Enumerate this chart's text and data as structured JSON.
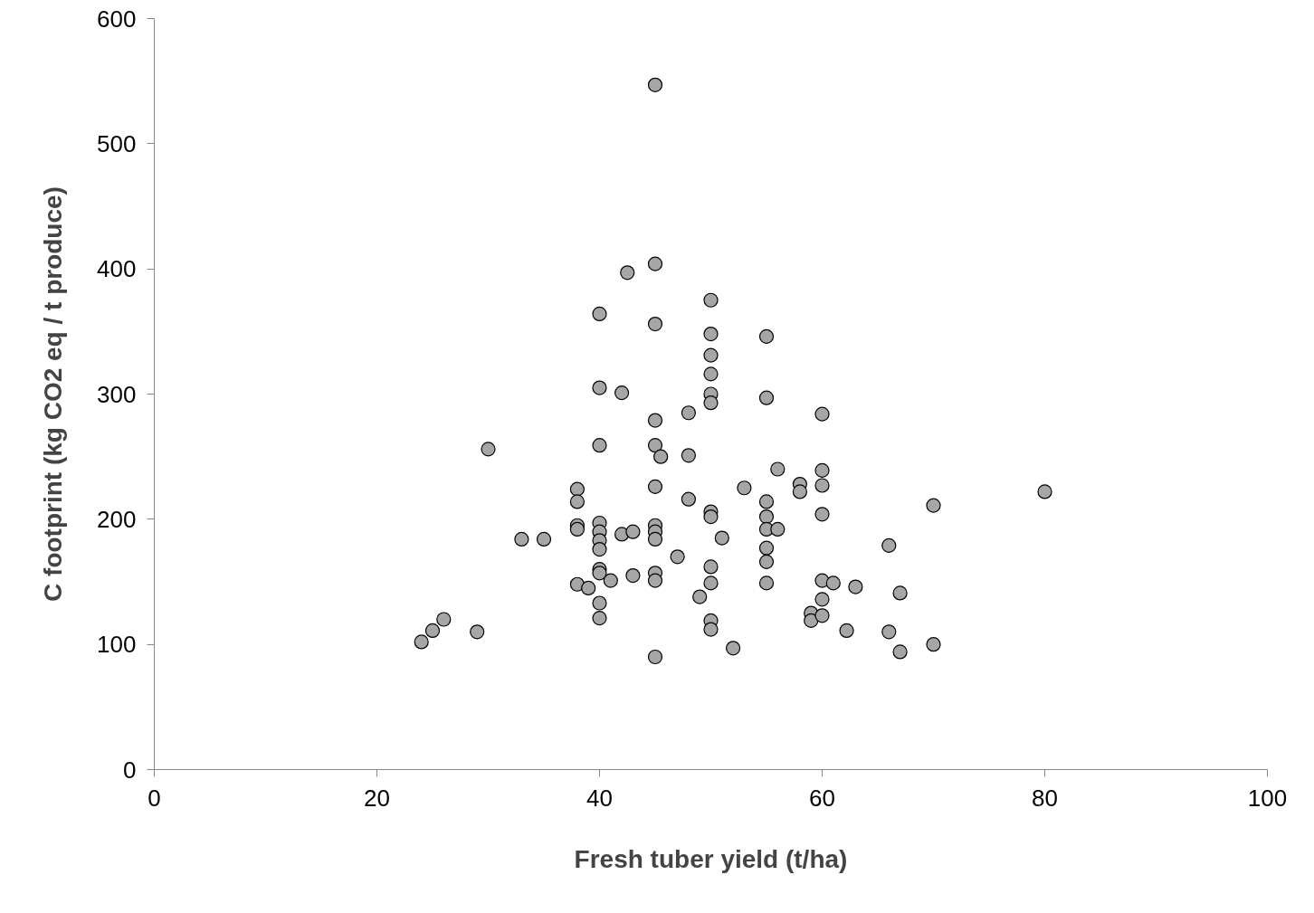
{
  "chart_data": {
    "type": "scatter",
    "xlabel": "Fresh tuber yield (t/ha)",
    "ylabel": "C footprint (kg CO2 eq / t produce)",
    "x": [
      24,
      25,
      26,
      29,
      30,
      33,
      35,
      38,
      38,
      38,
      38,
      38,
      39,
      40,
      40,
      40,
      40,
      40,
      40,
      40,
      40,
      40,
      40,
      40,
      41,
      42,
      42,
      42.5,
      43,
      43,
      45,
      45,
      45,
      45,
      45,
      45,
      45,
      45,
      45,
      45,
      45,
      45,
      45.5,
      47,
      48,
      48,
      48,
      49,
      50,
      50,
      50,
      50,
      50,
      50,
      50,
      50,
      50,
      50,
      50,
      50,
      51,
      52,
      53,
      55,
      55,
      55,
      55,
      55,
      55,
      55,
      55,
      56,
      56,
      58,
      58,
      59,
      59,
      60,
      60,
      60,
      60,
      60,
      60,
      60,
      61,
      62.2,
      63,
      66,
      66,
      67,
      67,
      70,
      70,
      80
    ],
    "values": [
      102,
      111,
      120,
      110,
      256,
      184,
      184,
      224,
      214,
      195,
      192,
      148,
      145,
      364,
      305,
      259,
      197,
      190,
      183,
      176,
      160,
      157,
      133,
      121,
      151,
      301,
      188,
      397,
      190,
      155,
      547,
      404,
      356,
      279,
      259,
      226,
      195,
      190,
      184,
      157,
      151,
      90,
      250,
      170,
      285,
      251,
      216,
      138,
      375,
      348,
      331,
      316,
      300,
      293,
      206,
      202,
      162,
      149,
      119,
      112,
      185,
      97,
      225,
      346,
      297,
      214,
      202,
      192,
      177,
      166,
      149,
      240,
      192,
      228,
      222,
      125,
      119,
      284,
      239,
      227,
      204,
      151,
      136,
      123,
      149,
      111,
      146,
      179,
      110,
      141,
      94,
      211,
      100,
      222
    ],
    "color": "#a6a6a6",
    "marker": "circle",
    "grid": false,
    "xlim": [
      0,
      100
    ],
    "xticks": [
      0,
      20,
      40,
      60,
      80,
      100
    ],
    "ylim": [
      0,
      600
    ],
    "yticks": [
      0,
      100,
      200,
      300,
      400,
      500,
      600
    ]
  }
}
